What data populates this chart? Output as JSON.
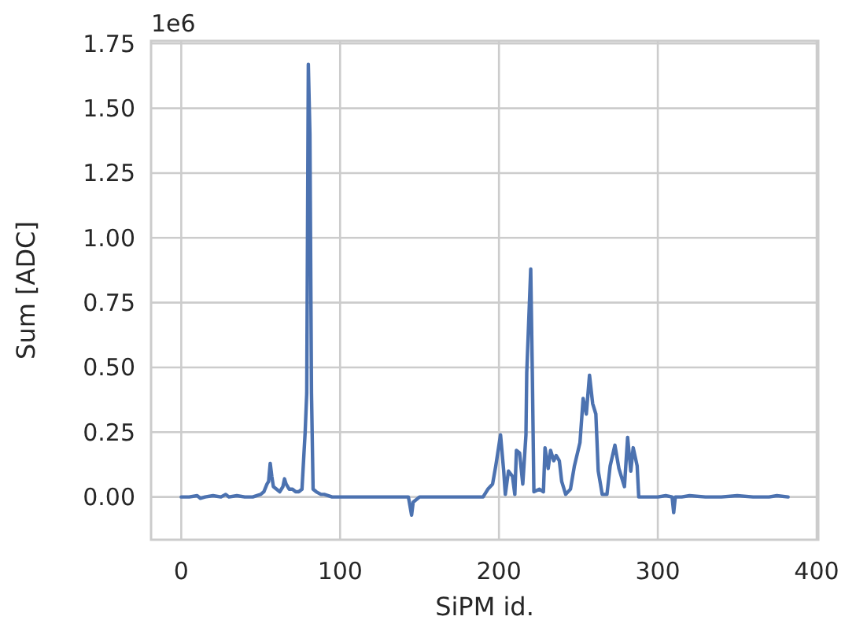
{
  "chart_data": {
    "type": "line",
    "xlabel": "SiPM id.",
    "ylabel": "Sum [ADC]",
    "annotations": [
      "1e6"
    ],
    "xlim": [
      -19,
      401
    ],
    "xticks": [
      0,
      100,
      200,
      300,
      400
    ],
    "ylim": [
      -0.165,
      1.76
    ],
    "yticks": [
      {
        "value": 0,
        "label": "0.00"
      },
      {
        "value": 0.25,
        "label": "0.25"
      },
      {
        "value": 0.5,
        "label": "0.50"
      },
      {
        "value": 0.75,
        "label": "0.75"
      },
      {
        "value": 1,
        "label": "1.00"
      },
      {
        "value": 1.25,
        "label": "1.25"
      },
      {
        "value": 1.5,
        "label": "1.50"
      },
      {
        "value": 1.75,
        "label": "1.75"
      }
    ],
    "grid": true,
    "marker": "none",
    "line_style": "solid",
    "series": [
      {
        "color": "#4c72b0",
        "x": [
          0,
          5,
          10,
          12,
          15,
          20,
          25,
          28,
          30,
          35,
          40,
          45,
          50,
          52,
          54,
          55,
          56,
          57,
          58,
          60,
          62,
          64,
          65,
          66,
          68,
          70,
          72,
          74,
          76,
          78,
          79,
          80,
          81,
          82,
          83,
          85,
          88,
          90,
          95,
          100,
          110,
          120,
          130,
          140,
          143,
          145,
          146,
          150,
          160,
          170,
          180,
          190,
          193,
          196,
          198,
          201,
          203,
          204,
          206,
          208.5,
          210,
          211,
          213,
          215,
          217,
          217.5,
          220,
          221,
          222,
          225.5,
          228,
          229,
          231,
          232.5,
          234.5,
          236,
          238,
          239.5,
          242,
          245,
          247.5,
          251,
          253,
          255,
          257,
          259,
          261,
          262.5,
          265,
          268,
          270,
          273,
          275.5,
          279,
          281,
          283,
          284.5,
          287,
          288,
          292,
          300,
          305,
          309,
          310,
          311,
          315,
          320,
          330,
          340,
          350,
          360,
          370,
          375,
          382
        ],
        "values": [
          0,
          0,
          0.005,
          -0.005,
          0,
          0.005,
          0,
          0.01,
          0,
          0.005,
          0,
          0,
          0.01,
          0.02,
          0.05,
          0.06,
          0.13,
          0.08,
          0.04,
          0.03,
          0.02,
          0.04,
          0.07,
          0.05,
          0.03,
          0.03,
          0.02,
          0.02,
          0.03,
          0.25,
          0.4,
          1.67,
          1.4,
          0.4,
          0.03,
          0.02,
          0.01,
          0.01,
          0,
          0,
          0,
          0,
          0,
          0,
          0,
          -0.07,
          -0.02,
          0,
          0,
          0,
          0,
          0,
          0.03,
          0.05,
          0.12,
          0.24,
          0.1,
          0.01,
          0.1,
          0.08,
          0.01,
          0.18,
          0.17,
          0.05,
          0.24,
          0.48,
          0.88,
          0.48,
          0.02,
          0.03,
          0.02,
          0.19,
          0.11,
          0.18,
          0.14,
          0.16,
          0.14,
          0.06,
          0.01,
          0.03,
          0.12,
          0.21,
          0.38,
          0.32,
          0.47,
          0.36,
          0.32,
          0.1,
          0.01,
          0.01,
          0.12,
          0.2,
          0.11,
          0.04,
          0.23,
          0.1,
          0.19,
          0.12,
          0,
          0,
          0,
          0.005,
          0,
          -0.06,
          0,
          0,
          0.005,
          0,
          0,
          0.005,
          0,
          0,
          0.005,
          0
        ]
      }
    ]
  }
}
